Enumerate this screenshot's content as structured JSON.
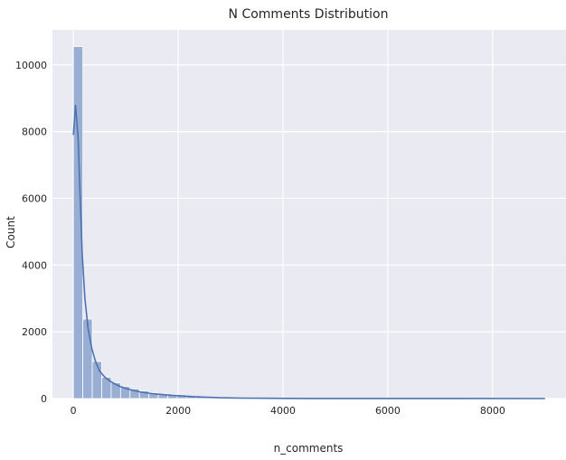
{
  "chart_data": {
    "type": "bar",
    "subtype": "histogram",
    "title": "N Comments Distribution",
    "xlabel": "n_comments",
    "ylabel": "Count",
    "xlim": [
      -400,
      9400
    ],
    "ylim": [
      0,
      11050
    ],
    "x_ticks": [
      0,
      2000,
      4000,
      6000,
      8000
    ],
    "x_tick_labels": [
      "0",
      "2000",
      "4000",
      "6000",
      "8000"
    ],
    "y_ticks": [
      0,
      2000,
      4000,
      6000,
      8000,
      10000
    ],
    "y_tick_labels": [
      "0",
      "2000",
      "4000",
      "6000",
      "8000",
      "10000"
    ],
    "grid": true,
    "background_color": "#eaeaf2",
    "bar_color": "#9aaed3",
    "bar_edge_color": "#ffffff",
    "kde_color": "#4c72b0",
    "bin_width": 180,
    "bin_start": 0,
    "values": [
      10550,
      2380,
      1110,
      640,
      470,
      360,
      290,
      230,
      175,
      140,
      110,
      85,
      65,
      50,
      40,
      32,
      26,
      21,
      17,
      14,
      12,
      10,
      8,
      7,
      6,
      5,
      4,
      4,
      3,
      3,
      3,
      2,
      2,
      2,
      2,
      2,
      1,
      1,
      1,
      1,
      1,
      1,
      1,
      1,
      1,
      1,
      1,
      1,
      1,
      1
    ],
    "kde": {
      "x": [
        0,
        40,
        90,
        130,
        170,
        220,
        280,
        350,
        420,
        500,
        600,
        700,
        800,
        900,
        1000,
        1150,
        1300,
        1500,
        1700,
        1900,
        2100,
        2300,
        2500,
        2800,
        3200,
        3700,
        4500,
        6000,
        9000
      ],
      "y": [
        7900,
        8800,
        7800,
        6000,
        4300,
        3000,
        2100,
        1500,
        1120,
        820,
        640,
        520,
        430,
        360,
        300,
        240,
        190,
        150,
        120,
        95,
        75,
        58,
        42,
        25,
        14,
        8,
        4,
        2,
        1
      ]
    }
  }
}
